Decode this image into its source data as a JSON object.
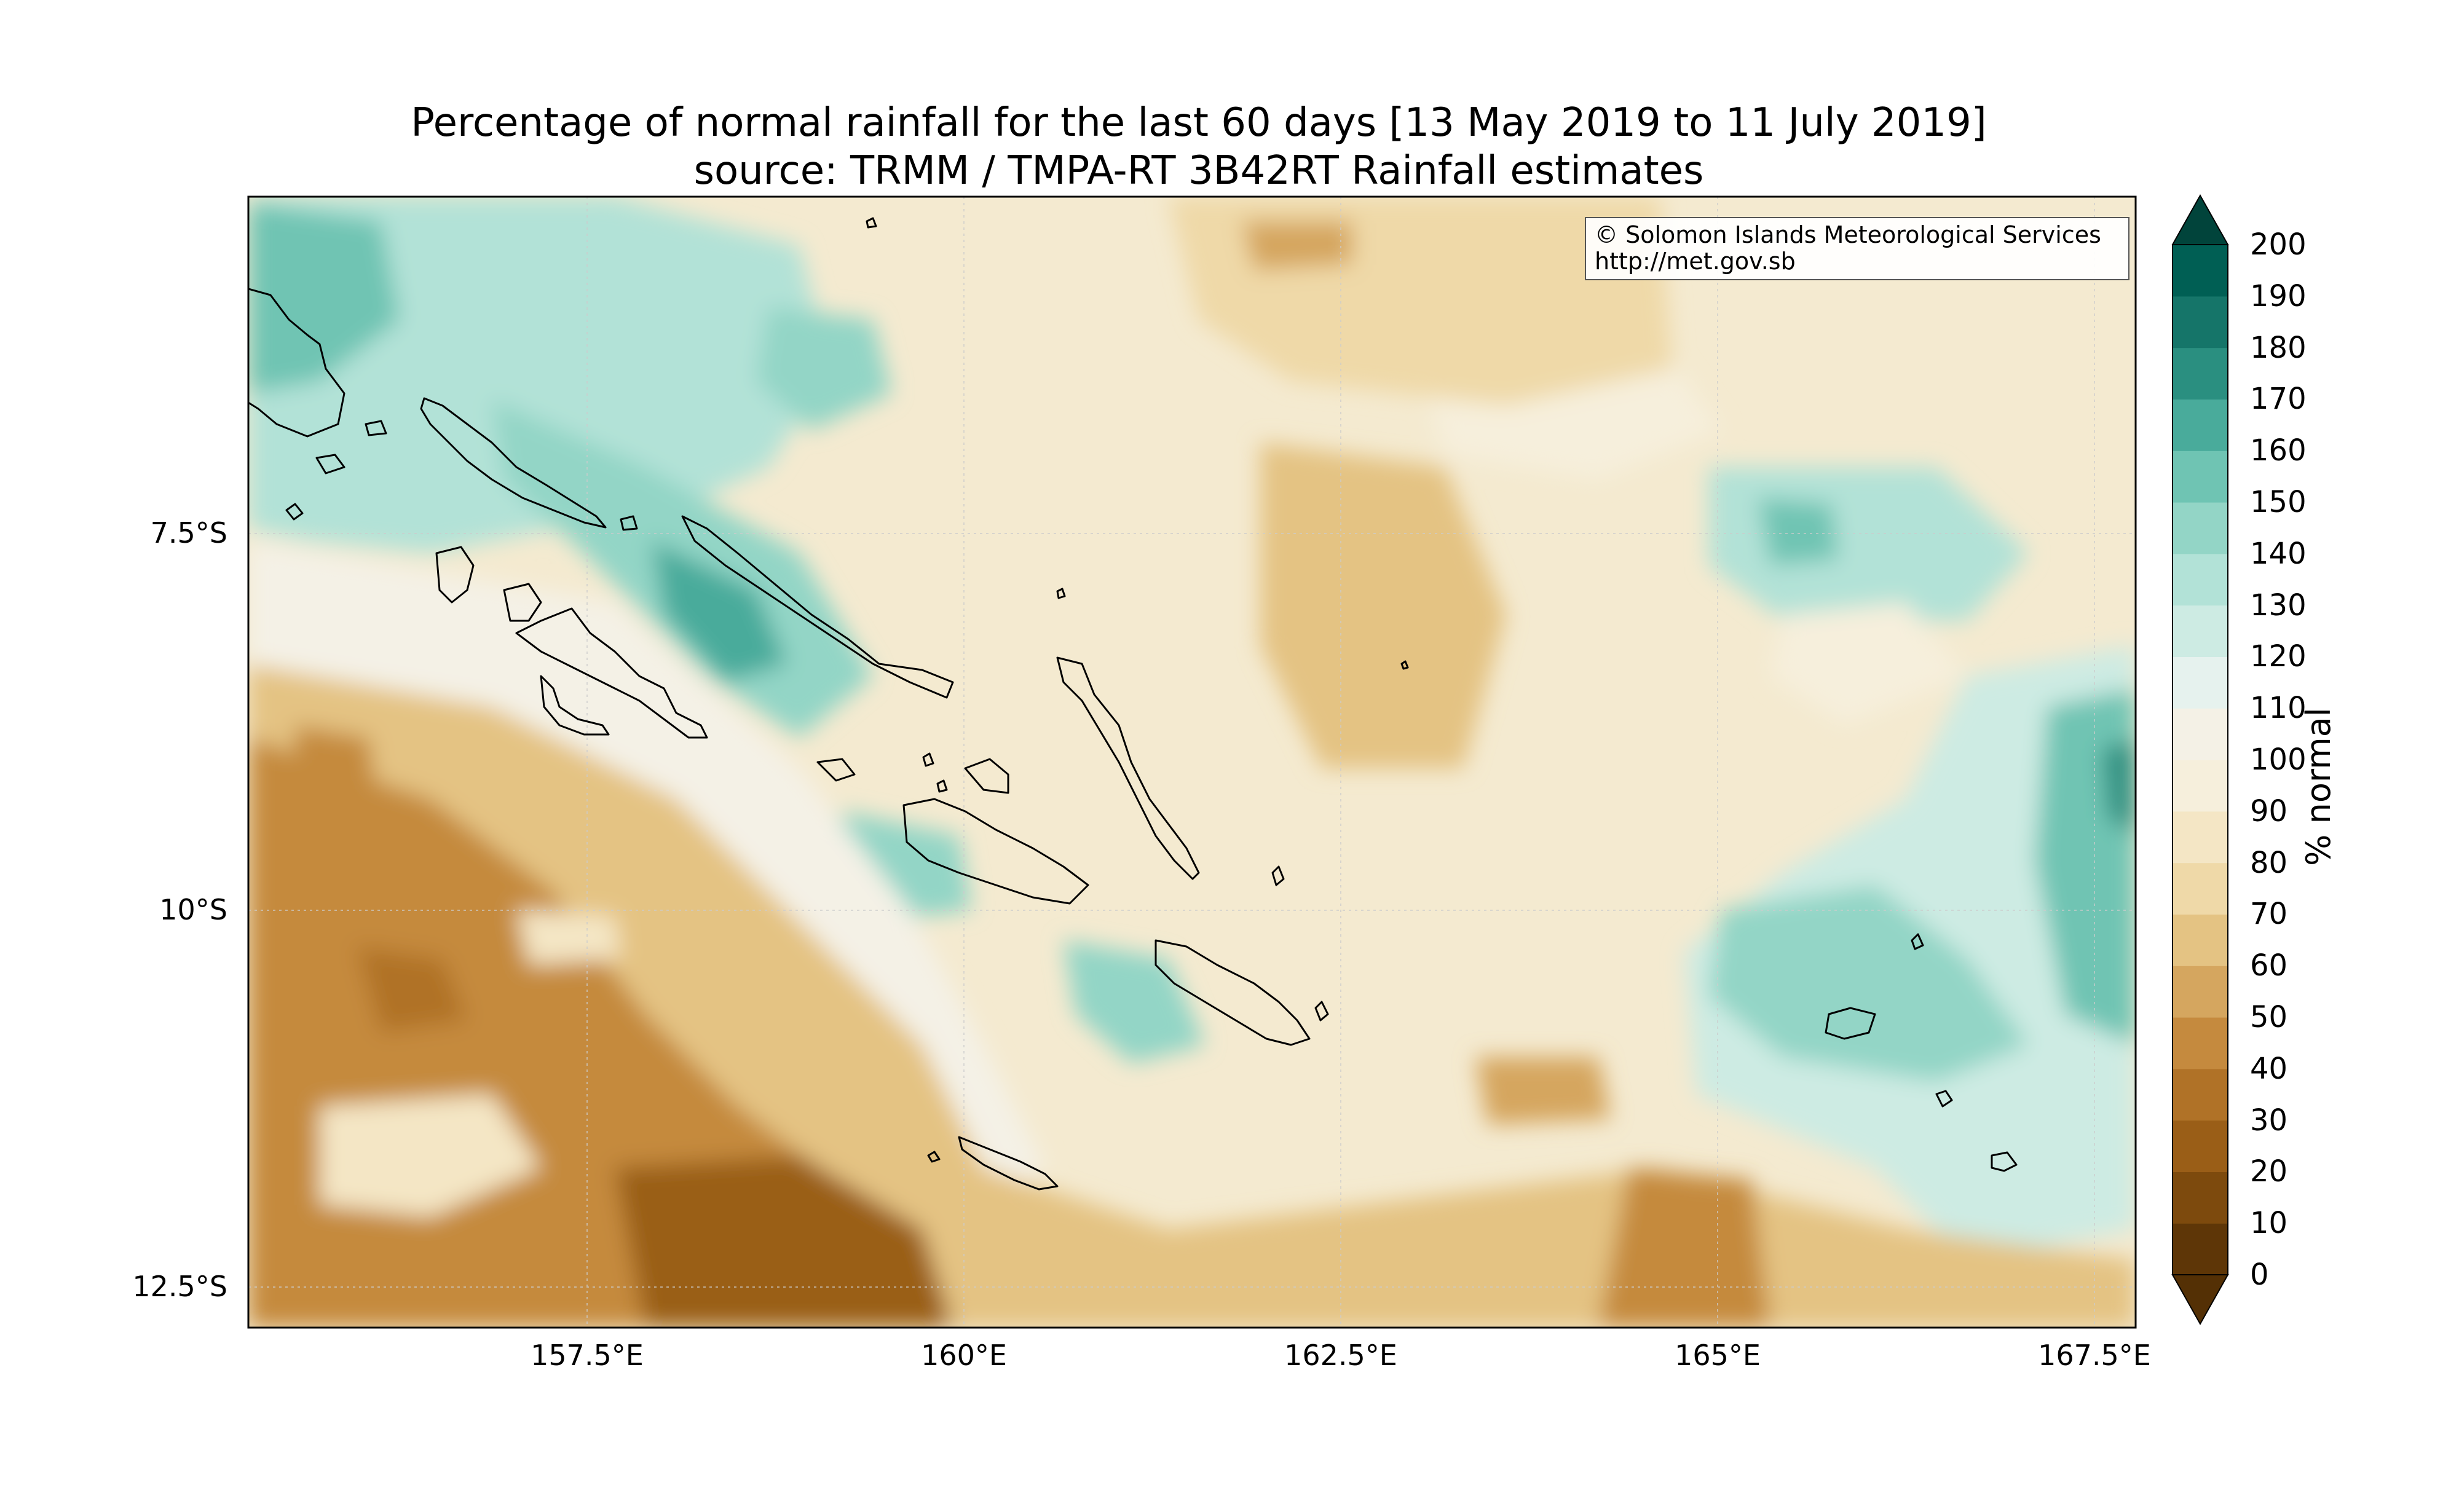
{
  "title": {
    "line1": "Percentage of normal rainfall for the last 60 days [13 May 2019 to 11 July 2019]",
    "line2": "source: TRMM / TMPA-RT 3B42RT Rainfall estimates"
  },
  "credit": {
    "line1": "© Solomon Islands Meteorological Services",
    "line2": "http://met.gov.sb"
  },
  "axes": {
    "y_ticks": [
      "7.5°S",
      "10°S",
      "12.5°S"
    ],
    "x_ticks": [
      "157.5°E",
      "160°E",
      "162.5°E",
      "165°E",
      "167.5°E"
    ]
  },
  "colorbar": {
    "title": "% normal",
    "labels": [
      "200",
      "190",
      "180",
      "170",
      "160",
      "150",
      "140",
      "130",
      "120",
      "110",
      "100",
      "90",
      "80",
      "70",
      "60",
      "50",
      "40",
      "30",
      "20",
      "10",
      "0"
    ],
    "colors": [
      "#5e3607",
      "#7d4a0d",
      "#9a5e17",
      "#b07227",
      "#c58a3e",
      "#d5a65f",
      "#e4c383",
      "#efd9a8",
      "#f4e6c5",
      "#f6efdc",
      "#f4f1e6",
      "#e6f2ee",
      "#cdebe3",
      "#b2e2d7",
      "#93d5c6",
      "#6fc4b3",
      "#49ab9b",
      "#2a8f80",
      "#157569",
      "#005f54",
      "#01443b"
    ],
    "extend_top_color": "#01443b",
    "extend_bottom_color": "#543005"
  },
  "map": {
    "background_color": "#f4ead0"
  }
}
